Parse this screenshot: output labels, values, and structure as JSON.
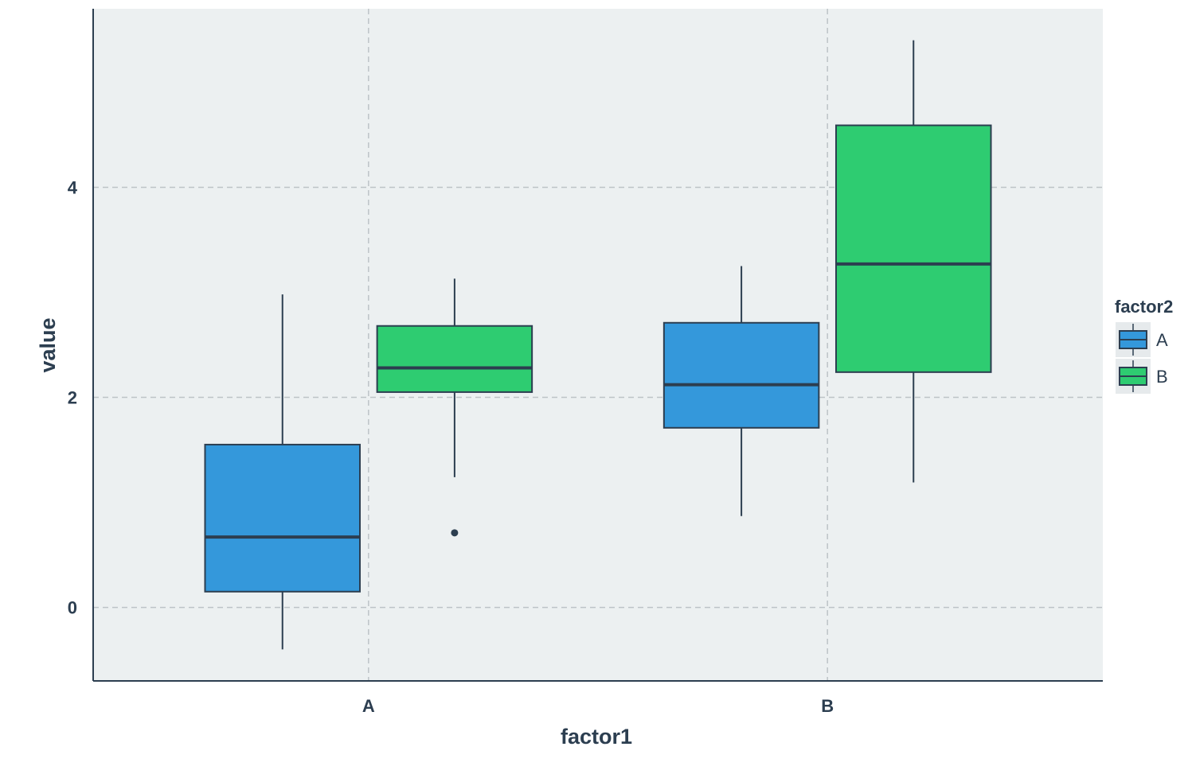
{
  "chart_data": {
    "type": "boxplot",
    "title": "",
    "xlabel": "factor1",
    "ylabel": "value",
    "categories": [
      "A",
      "B"
    ],
    "ylim": [
      -0.7,
      5.7
    ],
    "yticks": [
      "0",
      "2",
      "4"
    ],
    "grid": "dashed",
    "legend": {
      "title": "factor2",
      "position": "right"
    },
    "series": [
      {
        "name": "A",
        "color": "#3498db",
        "boxes": [
          {
            "whisker_low": -0.4,
            "q1": 0.15,
            "median": 0.67,
            "q3": 1.55,
            "whisker_high": 2.98,
            "outliers": []
          },
          {
            "whisker_low": 0.87,
            "q1": 1.71,
            "median": 2.12,
            "q3": 2.71,
            "whisker_high": 3.25,
            "outliers": []
          }
        ]
      },
      {
        "name": "B",
        "color": "#2ecc71",
        "boxes": [
          {
            "whisker_low": 1.24,
            "q1": 2.05,
            "median": 2.28,
            "q3": 2.68,
            "whisker_high": 3.13,
            "outliers": [
              0.71
            ]
          },
          {
            "whisker_low": 1.19,
            "q1": 2.24,
            "median": 3.27,
            "q3": 4.59,
            "whisker_high": 5.4,
            "outliers": []
          }
        ]
      }
    ]
  },
  "colors": {
    "panel": "#ecf0f1",
    "ink": "#2c3e50",
    "grid": "#bdc3c7"
  }
}
